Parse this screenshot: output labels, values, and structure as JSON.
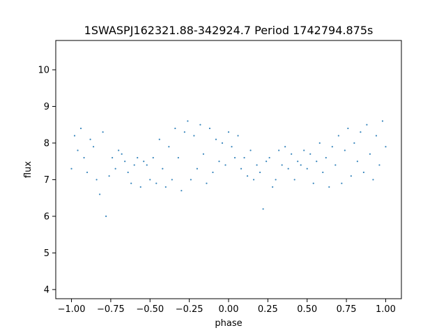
{
  "chart_data": {
    "type": "scatter",
    "title": "1SWASPJ162321.88-342924.7 Period 1742794.875s",
    "xlabel": "phase",
    "ylabel": "flux",
    "xlim": [
      -1.1,
      1.1
    ],
    "ylim": [
      3.75,
      10.8
    ],
    "xticks": [
      -1.0,
      -0.75,
      -0.5,
      -0.25,
      0.0,
      0.25,
      0.5,
      0.75,
      1.0
    ],
    "xtick_labels": [
      "−1.00",
      "−0.75",
      "−0.50",
      "−0.25",
      "0.00",
      "0.25",
      "0.50",
      "0.75",
      "1.00"
    ],
    "yticks": [
      4,
      5,
      6,
      7,
      8,
      9,
      10
    ],
    "ytick_labels": [
      "4",
      "5",
      "6",
      "7",
      "8",
      "9",
      "10"
    ],
    "grid": false,
    "legend": "none",
    "marker_color": "#1f77b4",
    "series": [
      {
        "points": [
          [
            -1.0,
            7.3
          ],
          [
            -0.98,
            8.2
          ],
          [
            -0.96,
            7.8
          ],
          [
            -0.94,
            8.4
          ],
          [
            -0.92,
            7.6
          ],
          [
            -0.9,
            7.2
          ],
          [
            -0.88,
            8.1
          ],
          [
            -0.86,
            7.9
          ],
          [
            -0.84,
            7.0
          ],
          [
            -0.82,
            6.6
          ],
          [
            -0.8,
            8.3
          ],
          [
            -0.78,
            6.0
          ],
          [
            -0.76,
            7.1
          ],
          [
            -0.74,
            7.6
          ],
          [
            -0.72,
            7.3
          ],
          [
            -0.7,
            7.8
          ],
          [
            -0.68,
            7.7
          ],
          [
            -0.66,
            7.5
          ],
          [
            -0.64,
            7.2
          ],
          [
            -0.62,
            6.9
          ],
          [
            -0.6,
            7.4
          ],
          [
            -0.58,
            7.6
          ],
          [
            -0.56,
            6.8
          ],
          [
            -0.54,
            7.5
          ],
          [
            -0.52,
            7.4
          ],
          [
            -0.5,
            7.0
          ],
          [
            -0.48,
            7.6
          ],
          [
            -0.46,
            6.9
          ],
          [
            -0.44,
            8.1
          ],
          [
            -0.42,
            7.3
          ],
          [
            -0.4,
            6.8
          ],
          [
            -0.38,
            7.9
          ],
          [
            -0.36,
            7.0
          ],
          [
            -0.34,
            8.4
          ],
          [
            -0.32,
            7.6
          ],
          [
            -0.3,
            6.7
          ],
          [
            -0.28,
            8.3
          ],
          [
            -0.26,
            8.6
          ],
          [
            -0.24,
            7.0
          ],
          [
            -0.22,
            8.2
          ],
          [
            -0.2,
            7.3
          ],
          [
            -0.18,
            8.5
          ],
          [
            -0.16,
            7.7
          ],
          [
            -0.14,
            6.9
          ],
          [
            -0.12,
            8.4
          ],
          [
            -0.1,
            7.2
          ],
          [
            -0.08,
            8.1
          ],
          [
            -0.06,
            7.5
          ],
          [
            -0.04,
            8.0
          ],
          [
            -0.02,
            7.4
          ],
          [
            0.0,
            8.3
          ],
          [
            0.02,
            7.9
          ],
          [
            0.04,
            7.6
          ],
          [
            0.06,
            8.2
          ],
          [
            0.08,
            7.3
          ],
          [
            0.1,
            7.6
          ],
          [
            0.12,
            7.1
          ],
          [
            0.14,
            7.8
          ],
          [
            0.16,
            7.0
          ],
          [
            0.18,
            7.4
          ],
          [
            0.2,
            7.2
          ],
          [
            0.22,
            6.2
          ],
          [
            0.24,
            7.5
          ],
          [
            0.26,
            7.6
          ],
          [
            0.28,
            6.8
          ],
          [
            0.3,
            7.0
          ],
          [
            0.32,
            7.8
          ],
          [
            0.34,
            7.4
          ],
          [
            0.36,
            7.9
          ],
          [
            0.38,
            7.3
          ],
          [
            0.4,
            7.7
          ],
          [
            0.42,
            7.0
          ],
          [
            0.44,
            7.5
          ],
          [
            0.46,
            7.4
          ],
          [
            0.48,
            7.8
          ],
          [
            0.5,
            7.3
          ],
          [
            0.52,
            7.7
          ],
          [
            0.54,
            6.9
          ],
          [
            0.56,
            7.5
          ],
          [
            0.58,
            8.0
          ],
          [
            0.6,
            7.2
          ],
          [
            0.62,
            7.6
          ],
          [
            0.64,
            6.8
          ],
          [
            0.66,
            7.9
          ],
          [
            0.68,
            7.4
          ],
          [
            0.7,
            8.2
          ],
          [
            0.72,
            6.9
          ],
          [
            0.74,
            7.8
          ],
          [
            0.76,
            8.4
          ],
          [
            0.78,
            7.1
          ],
          [
            0.8,
            8.0
          ],
          [
            0.82,
            7.5
          ],
          [
            0.84,
            8.3
          ],
          [
            0.86,
            7.2
          ],
          [
            0.88,
            8.5
          ],
          [
            0.9,
            7.7
          ],
          [
            0.92,
            7.0
          ],
          [
            0.94,
            8.2
          ],
          [
            0.96,
            7.4
          ],
          [
            0.98,
            8.6
          ],
          [
            1.0,
            7.9
          ]
        ]
      }
    ]
  }
}
